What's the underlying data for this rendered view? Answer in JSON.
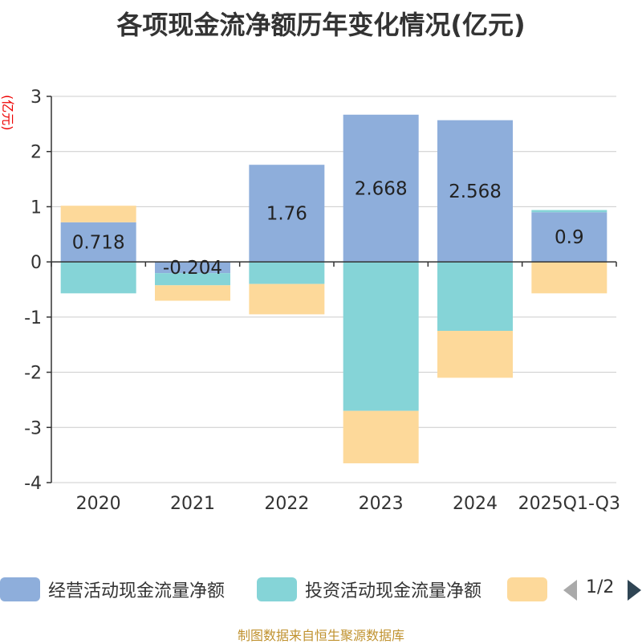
{
  "chart_data": {
    "type": "bar",
    "stacked": true,
    "title": "各项现金流净额历年变化情况(亿元)",
    "ylabel": "(亿元)",
    "xlabel": "",
    "ylim": [
      -4,
      3
    ],
    "yticks": [
      3,
      2,
      1,
      0,
      -1,
      -2,
      -3,
      -4
    ],
    "categories": [
      "2020",
      "2021",
      "2022",
      "2023",
      "2024",
      "2025Q1-Q3"
    ],
    "series": [
      {
        "name": "经营活动现金流量净额",
        "color": "#8eaedb",
        "values": [
          0.718,
          -0.204,
          1.76,
          2.668,
          2.568,
          0.9
        ],
        "labels": [
          "0.718",
          "-0.204",
          "1.76",
          "2.668",
          "2.568",
          "0.9"
        ]
      },
      {
        "name": "投资活动现金流量净额",
        "color": "#85d4d7",
        "values": [
          -0.57,
          -0.22,
          -0.4,
          -2.7,
          -1.25,
          0.04
        ]
      },
      {
        "name": "",
        "color": "#fdd99a",
        "values": [
          0.3,
          -0.28,
          -0.55,
          -0.95,
          -0.85,
          -0.57
        ]
      }
    ],
    "legend": {
      "position": "bottom",
      "page": "1/2"
    }
  },
  "footer": "制图数据来自恒生聚源数据库"
}
